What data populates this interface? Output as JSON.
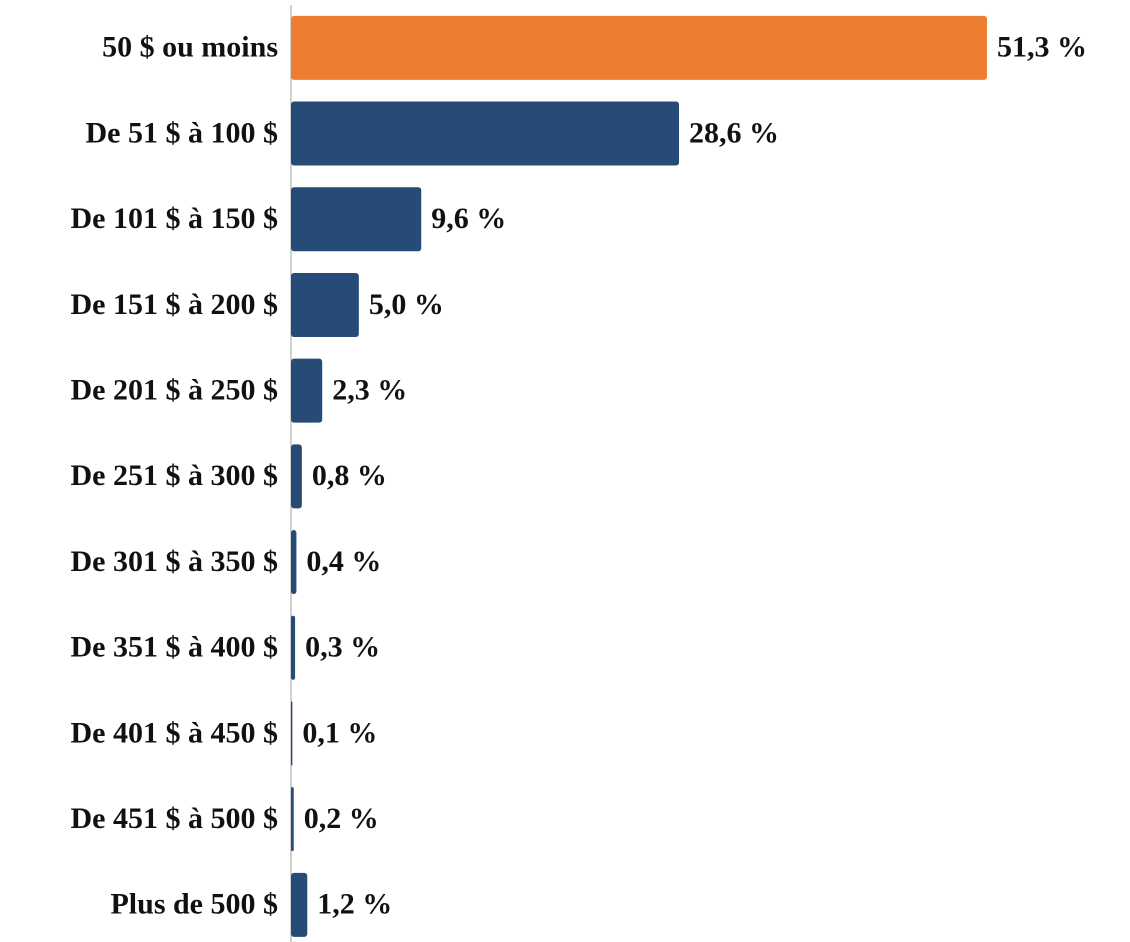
{
  "chart_data": {
    "type": "bar",
    "orientation": "horizontal",
    "categories": [
      "50 $ ou moins",
      "De 51 $ à 100 $",
      "De 101 $ à 150 $",
      "De 151 $ à 200 $",
      "De 201 $ à 250 $",
      "De 251 $ à 300 $",
      "De 301 $ à 350 $",
      "De 351 $ à 400 $",
      "De 401 $ à 450 $",
      "De 451 $ à 500 $",
      "Plus de 500 $"
    ],
    "values": [
      51.3,
      28.6,
      9.6,
      5.0,
      2.3,
      0.8,
      0.4,
      0.3,
      0.1,
      0.2,
      1.2
    ],
    "value_labels": [
      "51,3 %",
      "28,6 %",
      "9,6 %",
      "5,0 %",
      "2,3 %",
      "0,8 %",
      "0,4 %",
      "0,3 %",
      "0,1 %",
      "0,2 %",
      "1,2 %"
    ],
    "colors": [
      "#ed7d31",
      "#264b77",
      "#264b77",
      "#264b77",
      "#264b77",
      "#264b77",
      "#264b77",
      "#264b77",
      "#264b77",
      "#264b77",
      "#264b77"
    ]
  }
}
